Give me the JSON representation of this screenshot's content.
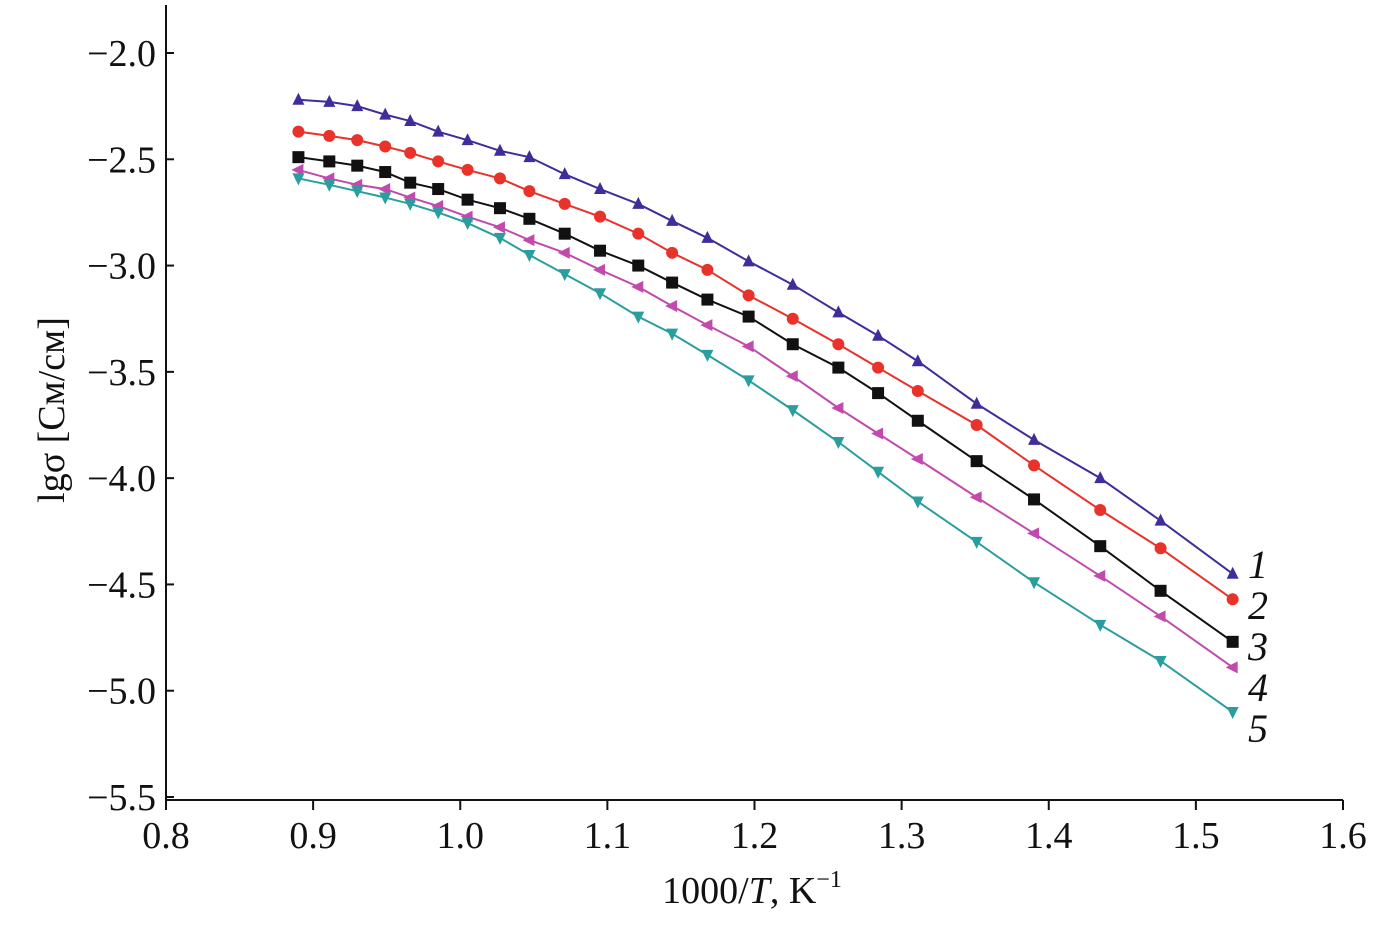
{
  "chart_data": {
    "type": "line",
    "title": "",
    "xlabel_main": "1000/",
    "xlabel_var": "T",
    "xlabel_unit": ", K",
    "xlabel_exp": "−1",
    "ylabel": "lgσ [См/см]",
    "xlim": [
      0.8,
      1.6
    ],
    "ylim": [
      -5.5,
      -2.0
    ],
    "xticks": [
      "0.8",
      "0.9",
      "1.0",
      "1.1",
      "1.2",
      "1.3",
      "1.4",
      "1.5",
      "1.6"
    ],
    "yticks": [
      "−2.0",
      "−2.5",
      "−3.0",
      "−3.5",
      "−4.0",
      "−4.5",
      "−5.0",
      "−5.5"
    ],
    "grid": false,
    "legend": "inline labels at right end of curves",
    "x": [
      0.89,
      0.911,
      0.93,
      0.949,
      0.966,
      0.985,
      1.005,
      1.027,
      1.047,
      1.071,
      1.095,
      1.121,
      1.144,
      1.168,
      1.196,
      1.226,
      1.257,
      1.284,
      1.311,
      1.351,
      1.39,
      1.435,
      1.476,
      1.525
    ],
    "series": [
      {
        "name": "1",
        "color": "#3d2e9c",
        "marker": "triangle-up",
        "values": [
          -2.22,
          -2.23,
          -2.25,
          -2.29,
          -2.32,
          -2.37,
          -2.41,
          -2.46,
          -2.49,
          -2.57,
          -2.64,
          -2.71,
          -2.79,
          -2.87,
          -2.98,
          -3.09,
          -3.22,
          -3.33,
          -3.45,
          -3.65,
          -3.82,
          -4.0,
          -4.2,
          -4.45
        ]
      },
      {
        "name": "2",
        "color": "#e8322a",
        "marker": "circle",
        "values": [
          -2.37,
          -2.39,
          -2.41,
          -2.44,
          -2.47,
          -2.51,
          -2.55,
          -2.59,
          -2.65,
          -2.71,
          -2.77,
          -2.85,
          -2.94,
          -3.02,
          -3.14,
          -3.25,
          -3.37,
          -3.48,
          -3.59,
          -3.75,
          -3.94,
          -4.15,
          -4.33,
          -4.57
        ]
      },
      {
        "name": "3",
        "color": "#111111",
        "marker": "square",
        "values": [
          -2.49,
          -2.51,
          -2.53,
          -2.56,
          -2.61,
          -2.64,
          -2.69,
          -2.73,
          -2.78,
          -2.85,
          -2.93,
          -3.0,
          -3.08,
          -3.16,
          -3.24,
          -3.37,
          -3.48,
          -3.6,
          -3.73,
          -3.92,
          -4.1,
          -4.32,
          -4.53,
          -4.77
        ]
      },
      {
        "name": "4",
        "color": "#c24aae",
        "marker": "triangle-left",
        "values": [
          -2.55,
          -2.59,
          -2.62,
          -2.64,
          -2.68,
          -2.72,
          -2.77,
          -2.82,
          -2.88,
          -2.94,
          -3.02,
          -3.1,
          -3.19,
          -3.28,
          -3.38,
          -3.52,
          -3.67,
          -3.79,
          -3.91,
          -4.09,
          -4.26,
          -4.46,
          -4.65,
          -4.89
        ]
      },
      {
        "name": "5",
        "color": "#2a9e9e",
        "marker": "triangle-down",
        "values": [
          -2.59,
          -2.62,
          -2.65,
          -2.68,
          -2.71,
          -2.75,
          -2.8,
          -2.87,
          -2.95,
          -3.04,
          -3.13,
          -3.24,
          -3.32,
          -3.42,
          -3.54,
          -3.68,
          -3.83,
          -3.97,
          -4.11,
          -4.3,
          -4.49,
          -4.69,
          -4.86,
          -5.1
        ]
      }
    ]
  }
}
